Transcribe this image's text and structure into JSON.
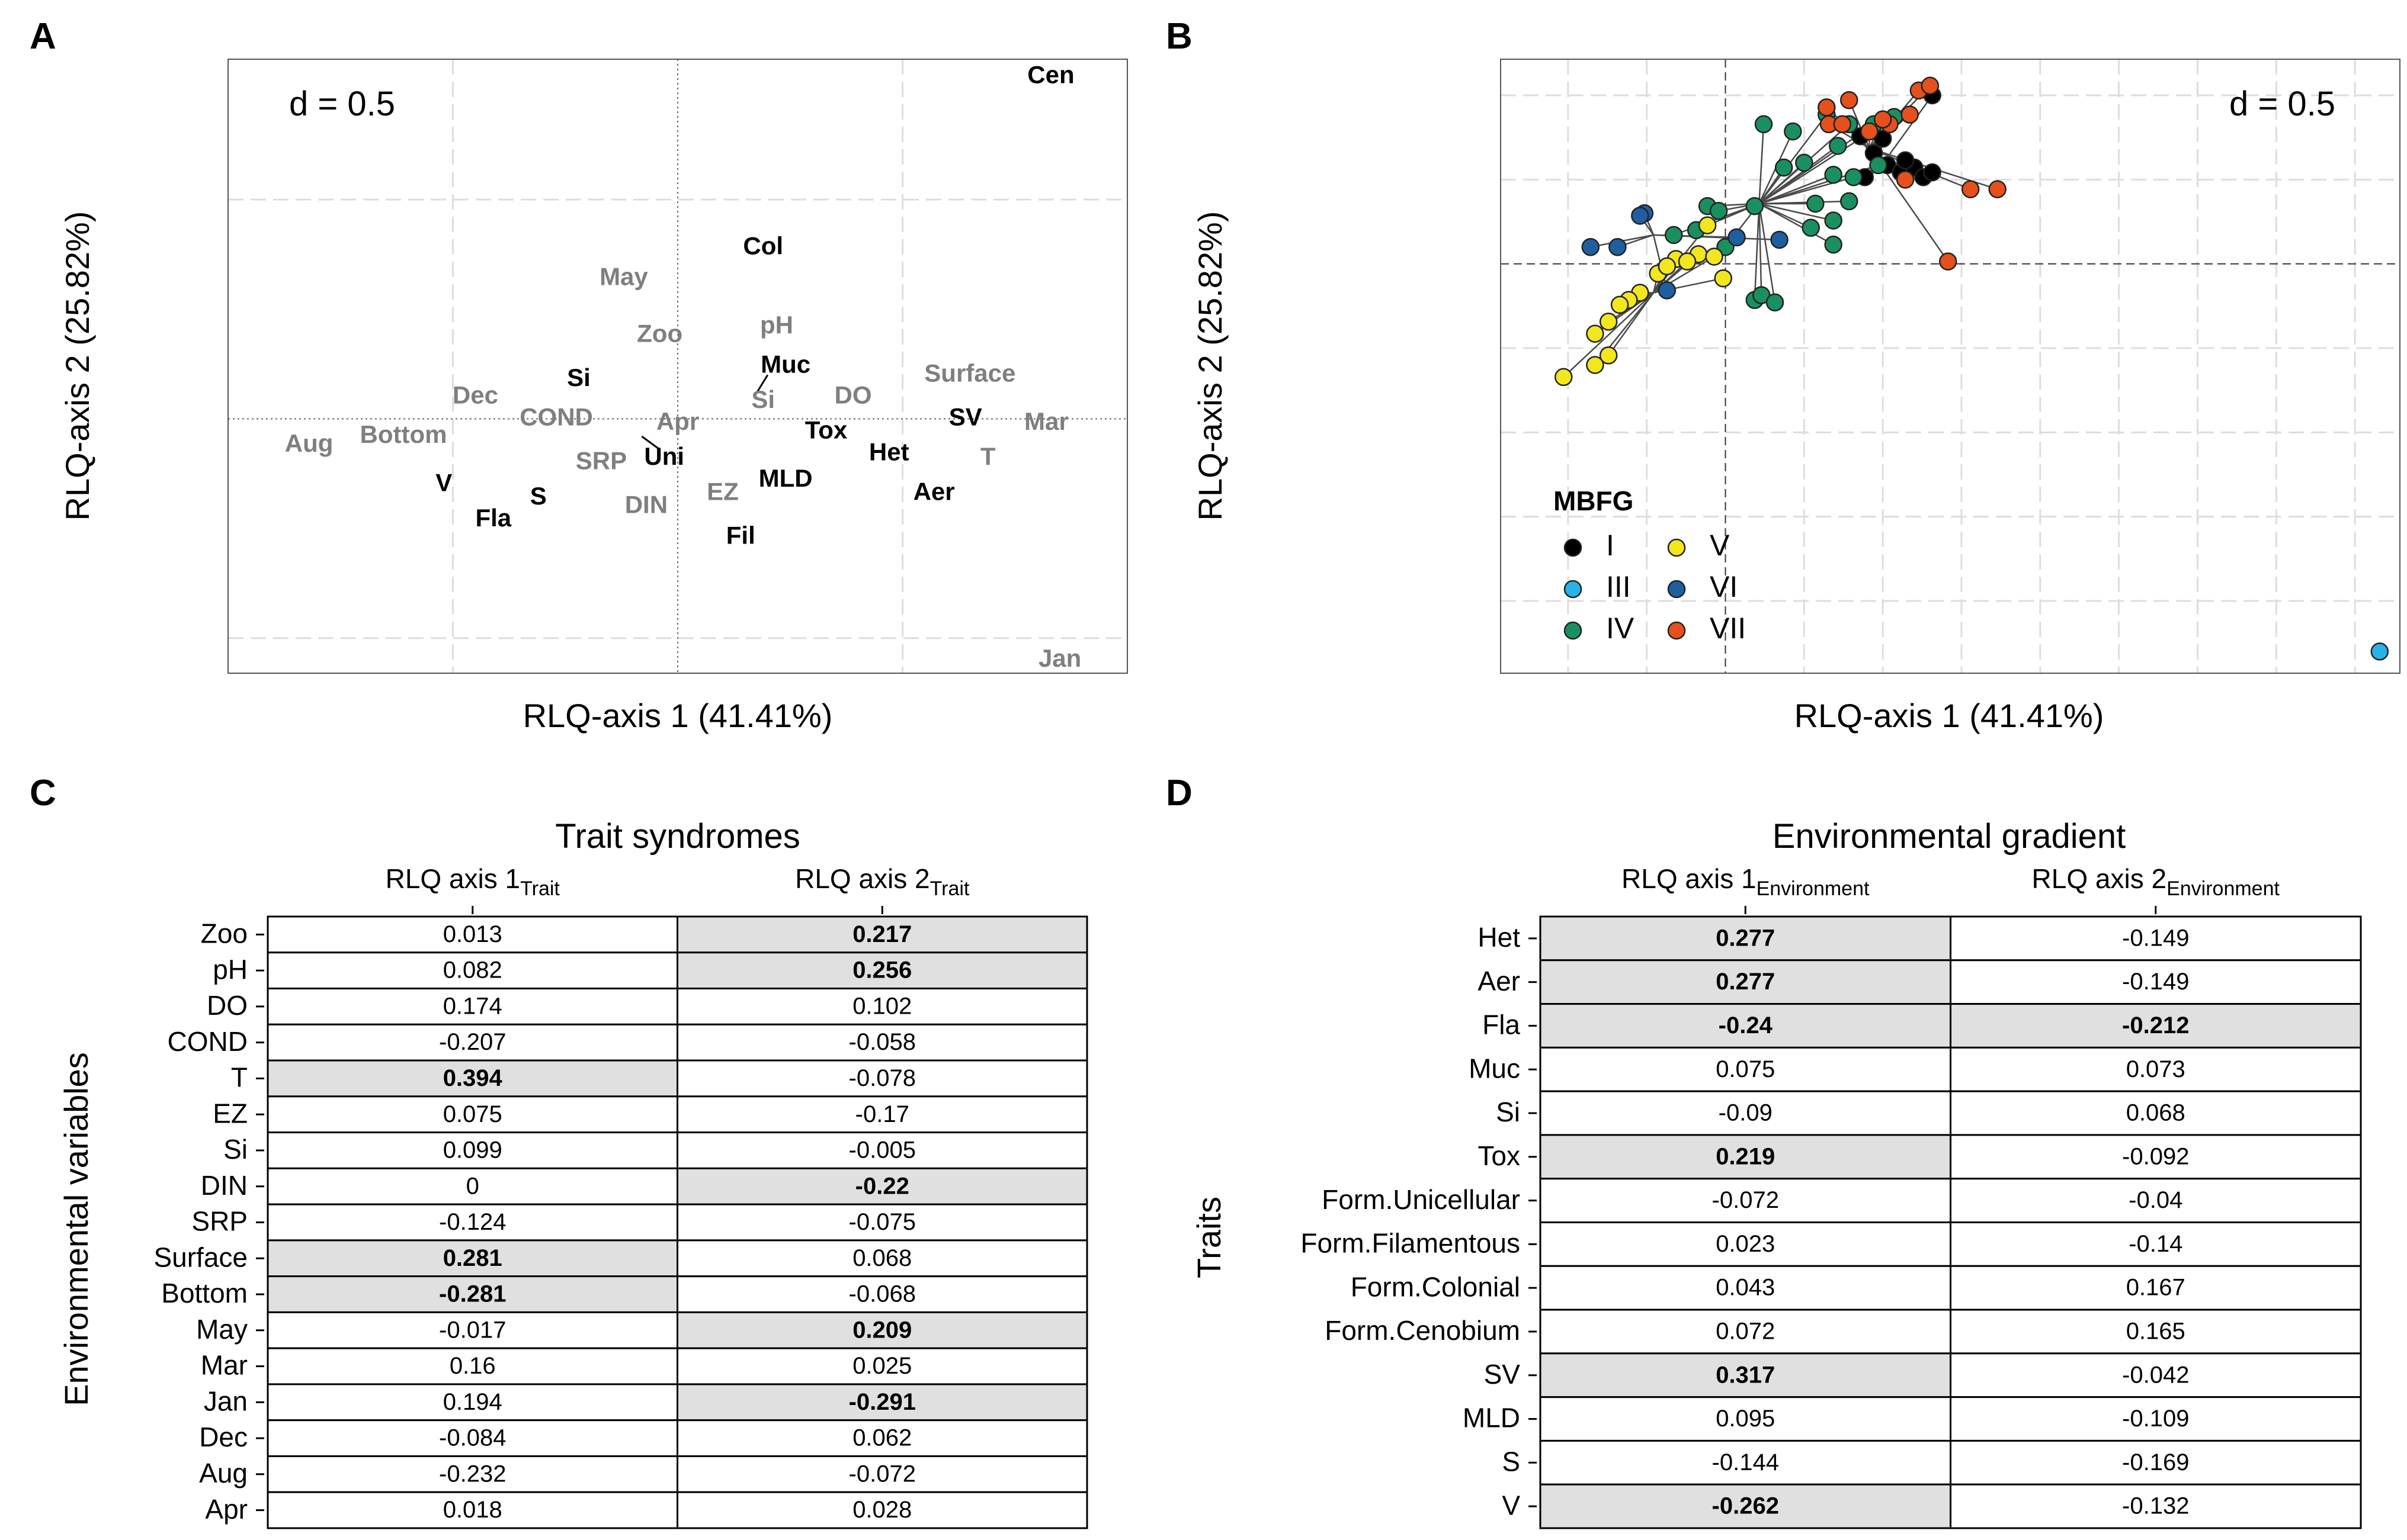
{
  "panels": {
    "A": "A",
    "B": "B",
    "C": "C",
    "D": "D"
  },
  "colors": {
    "grid": "#dddddd",
    "grey_label": "#7f7f7f",
    "highlight": "#e0e0e0",
    "mbfg": {
      "I": "#000000",
      "III": "#29b2e8",
      "IV": "#1a9060",
      "V": "#f2e61e",
      "VI": "#1f5fa0",
      "VII": "#e5501c"
    }
  },
  "chart_data": [
    {
      "id": "A",
      "type": "scatter",
      "title": "",
      "annotation": "d = 0.5",
      "xlabel": "RLQ-axis 1 (41.41%)",
      "ylabel": "RLQ-axis 2 (25.82%)",
      "xlim": [
        -1.0,
        1.0
      ],
      "ylim": [
        -0.58,
        0.82
      ],
      "grid_step": 0.5,
      "grid": true,
      "environment_labels": [
        {
          "label": "May",
          "x": -0.12,
          "y": 0.32
        },
        {
          "label": "Zoo",
          "x": -0.04,
          "y": 0.19
        },
        {
          "label": "pH",
          "x": 0.22,
          "y": 0.21
        },
        {
          "label": "Si",
          "x": 0.19,
          "y": 0.04
        },
        {
          "label": "Dec",
          "x": -0.45,
          "y": 0.05
        },
        {
          "label": "COND",
          "x": -0.27,
          "y": 0.0
        },
        {
          "label": "Apr",
          "x": 0.0,
          "y": -0.01
        },
        {
          "label": "DO",
          "x": 0.39,
          "y": 0.05
        },
        {
          "label": "Surface",
          "x": 0.65,
          "y": 0.1
        },
        {
          "label": "Mar",
          "x": 0.82,
          "y": -0.01
        },
        {
          "label": "Aug",
          "x": -0.82,
          "y": -0.06
        },
        {
          "label": "Bottom",
          "x": -0.61,
          "y": -0.04
        },
        {
          "label": "SRP",
          "x": -0.17,
          "y": -0.1
        },
        {
          "label": "DIN",
          "x": -0.07,
          "y": -0.2
        },
        {
          "label": "EZ",
          "x": 0.1,
          "y": -0.17
        },
        {
          "label": "T",
          "x": 0.69,
          "y": -0.09
        },
        {
          "label": "Jan",
          "x": 0.85,
          "y": -0.55
        }
      ],
      "trait_labels": [
        {
          "label": "Cen",
          "x": 0.83,
          "y": 0.78
        },
        {
          "label": "Col",
          "x": 0.19,
          "y": 0.39
        },
        {
          "label": "Muc",
          "x": 0.24,
          "y": 0.12
        },
        {
          "label": "Si",
          "x": -0.22,
          "y": 0.09
        },
        {
          "label": "Uni",
          "x": -0.03,
          "y": -0.09
        },
        {
          "label": "Tox",
          "x": 0.33,
          "y": -0.03
        },
        {
          "label": "SV",
          "x": 0.64,
          "y": 0.0
        },
        {
          "label": "Het",
          "x": 0.47,
          "y": -0.08
        },
        {
          "label": "MLD",
          "x": 0.24,
          "y": -0.14
        },
        {
          "label": "Aer",
          "x": 0.57,
          "y": -0.17
        },
        {
          "label": "V",
          "x": -0.52,
          "y": -0.15
        },
        {
          "label": "S",
          "x": -0.31,
          "y": -0.18
        },
        {
          "label": "Fla",
          "x": -0.41,
          "y": -0.23
        },
        {
          "label": "Fil",
          "x": 0.14,
          "y": -0.27
        }
      ]
    },
    {
      "id": "B",
      "type": "scatter",
      "annotation": "d = 0.5",
      "xlabel": "RLQ-axis 1 (41.41%)",
      "ylabel": "RLQ-axis 2 (25.82%)",
      "xlim": [
        -1.0,
        3.0
      ],
      "ylim": [
        -1.7,
        0.85
      ],
      "grid_step": 0.35,
      "grid": true,
      "legend_title": "MBFG",
      "legend_position": "bottom-left",
      "centroids": {
        "I": [
          0.68,
          0.39
        ],
        "IV": [
          0.15,
          0.25
        ],
        "V": [
          -0.32,
          -0.12
        ],
        "VI": [
          -0.32,
          0.12
        ],
        "VII": [
          0.64,
          0.48
        ]
      },
      "series": [
        {
          "name": "I",
          "points": [
            [
              0.72,
              0.41
            ],
            [
              0.78,
              0.38
            ],
            [
              0.62,
              0.36
            ],
            [
              0.84,
              0.4
            ],
            [
              0.88,
              0.36
            ],
            [
              0.7,
              0.52
            ],
            [
              0.66,
              0.46
            ],
            [
              0.8,
              0.43
            ],
            [
              0.92,
              0.38
            ],
            [
              0.6,
              0.53
            ],
            [
              0.92,
              0.7
            ]
          ]
        },
        {
          "name": "III",
          "points": [
            [
              2.91,
              -1.61
            ]
          ]
        },
        {
          "name": "IV",
          "points": [
            [
              0.17,
              0.58
            ],
            [
              0.13,
              0.24
            ],
            [
              -0.08,
              0.24
            ],
            [
              -0.03,
              0.22
            ],
            [
              0.4,
              0.25
            ],
            [
              0.38,
              0.15
            ],
            [
              0.35,
              0.42
            ],
            [
              0.45,
              0.62
            ],
            [
              0.55,
              0.58
            ],
            [
              0.5,
              0.49
            ],
            [
              0.66,
              0.58
            ],
            [
              0.75,
              0.61
            ],
            [
              0.68,
              0.41
            ],
            [
              0.48,
              0.18
            ],
            [
              0.55,
              0.26
            ],
            [
              0.3,
              0.55
            ],
            [
              0.26,
              0.4
            ],
            [
              -0.23,
              0.12
            ],
            [
              0.13,
              -0.15
            ],
            [
              0.16,
              -0.13
            ],
            [
              0.22,
              -0.16
            ],
            [
              0.0,
              0.07
            ],
            [
              -0.13,
              0.14
            ],
            [
              0.48,
              0.37
            ],
            [
              0.57,
              0.36
            ],
            [
              0.48,
              0.08
            ]
          ]
        },
        {
          "name": "V",
          "points": [
            [
              -0.08,
              0.16
            ],
            [
              -0.22,
              0.02
            ],
            [
              -0.3,
              -0.04
            ],
            [
              -0.38,
              -0.12
            ],
            [
              -0.43,
              -0.15
            ],
            [
              -0.47,
              -0.17
            ],
            [
              -0.52,
              -0.24
            ],
            [
              -0.72,
              -0.47
            ],
            [
              -0.58,
              -0.29
            ],
            [
              -0.52,
              -0.38
            ],
            [
              -0.58,
              -0.42
            ],
            [
              -0.12,
              0.04
            ],
            [
              -0.05,
              0.03
            ],
            [
              -0.17,
              0.01
            ],
            [
              -0.01,
              -0.06
            ],
            [
              -0.26,
              -0.01
            ]
          ]
        },
        {
          "name": "VI",
          "points": [
            [
              -0.36,
              0.21
            ],
            [
              -0.48,
              0.07
            ],
            [
              -0.6,
              0.07
            ],
            [
              -0.26,
              -0.11
            ],
            [
              0.05,
              0.11
            ],
            [
              0.24,
              0.1
            ],
            [
              -0.38,
              0.2
            ]
          ]
        },
        {
          "name": "VII",
          "points": [
            [
              0.73,
              0.58
            ],
            [
              0.82,
              0.62
            ],
            [
              0.86,
              0.72
            ],
            [
              0.91,
              0.74
            ],
            [
              0.55,
              0.68
            ],
            [
              0.46,
              0.58
            ],
            [
              0.45,
              0.65
            ],
            [
              0.7,
              0.6
            ],
            [
              0.64,
              0.55
            ],
            [
              0.8,
              0.35
            ],
            [
              1.09,
              0.31
            ],
            [
              1.21,
              0.31
            ],
            [
              0.99,
              0.01
            ],
            [
              0.52,
              0.58
            ]
          ]
        }
      ]
    },
    {
      "id": "C",
      "type": "table",
      "title": "Trait syndromes",
      "col_labels": [
        {
          "base": "RLQ axis 1",
          "sub": "Trait"
        },
        {
          "base": "RLQ axis 2",
          "sub": "Trait"
        }
      ],
      "ylabel": "Environmental variables",
      "rows": [
        {
          "label": "Zoo",
          "values": [
            "0.013",
            "0.217"
          ],
          "hl": [
            false,
            true
          ]
        },
        {
          "label": "pH",
          "values": [
            "0.082",
            "0.256"
          ],
          "hl": [
            false,
            true
          ]
        },
        {
          "label": "DO",
          "values": [
            "0.174",
            "0.102"
          ],
          "hl": [
            false,
            false
          ]
        },
        {
          "label": "COND",
          "values": [
            "-0.207",
            "-0.058"
          ],
          "hl": [
            false,
            false
          ]
        },
        {
          "label": "T",
          "values": [
            "0.394",
            "-0.078"
          ],
          "hl": [
            true,
            false
          ]
        },
        {
          "label": "EZ",
          "values": [
            "0.075",
            "-0.17"
          ],
          "hl": [
            false,
            false
          ]
        },
        {
          "label": "Si",
          "values": [
            "0.099",
            "-0.005"
          ],
          "hl": [
            false,
            false
          ]
        },
        {
          "label": "DIN",
          "values": [
            "0",
            "-0.22"
          ],
          "hl": [
            false,
            true
          ]
        },
        {
          "label": "SRP",
          "values": [
            "-0.124",
            "-0.075"
          ],
          "hl": [
            false,
            false
          ]
        },
        {
          "label": "Surface",
          "values": [
            "0.281",
            "0.068"
          ],
          "hl": [
            true,
            false
          ]
        },
        {
          "label": "Bottom",
          "values": [
            "-0.281",
            "-0.068"
          ],
          "hl": [
            true,
            false
          ]
        },
        {
          "label": "May",
          "values": [
            "-0.017",
            "0.209"
          ],
          "hl": [
            false,
            true
          ]
        },
        {
          "label": "Mar",
          "values": [
            "0.16",
            "0.025"
          ],
          "hl": [
            false,
            false
          ]
        },
        {
          "label": "Jan",
          "values": [
            "0.194",
            "-0.291"
          ],
          "hl": [
            false,
            true
          ]
        },
        {
          "label": "Dec",
          "values": [
            "-0.084",
            "0.062"
          ],
          "hl": [
            false,
            false
          ]
        },
        {
          "label": "Aug",
          "values": [
            "-0.232",
            "-0.072"
          ],
          "hl": [
            false,
            false
          ]
        },
        {
          "label": "Apr",
          "values": [
            "0.018",
            "0.028"
          ],
          "hl": [
            false,
            false
          ]
        }
      ]
    },
    {
      "id": "D",
      "type": "table",
      "title": "Environmental gradient",
      "col_labels": [
        {
          "base": "RLQ axis 1",
          "sub": "Environment"
        },
        {
          "base": "RLQ axis 2",
          "sub": "Environment"
        }
      ],
      "ylabel": "Traits",
      "rows": [
        {
          "label": "Het",
          "values": [
            "0.277",
            "-0.149"
          ],
          "hl": [
            true,
            false
          ]
        },
        {
          "label": "Aer",
          "values": [
            "0.277",
            "-0.149"
          ],
          "hl": [
            true,
            false
          ]
        },
        {
          "label": "Fla",
          "values": [
            "-0.24",
            "-0.212"
          ],
          "hl": [
            true,
            true
          ]
        },
        {
          "label": "Muc",
          "values": [
            "0.075",
            "0.073"
          ],
          "hl": [
            false,
            false
          ]
        },
        {
          "label": "Si",
          "values": [
            "-0.09",
            "0.068"
          ],
          "hl": [
            false,
            false
          ]
        },
        {
          "label": "Tox",
          "values": [
            "0.219",
            "-0.092"
          ],
          "hl": [
            true,
            false
          ]
        },
        {
          "label": "Form.Unicellular",
          "values": [
            "-0.072",
            "-0.04"
          ],
          "hl": [
            false,
            false
          ]
        },
        {
          "label": "Form.Filamentous",
          "values": [
            "0.023",
            "-0.14"
          ],
          "hl": [
            false,
            false
          ]
        },
        {
          "label": "Form.Colonial",
          "values": [
            "0.043",
            "0.167"
          ],
          "hl": [
            false,
            false
          ]
        },
        {
          "label": "Form.Cenobium",
          "values": [
            "0.072",
            "0.165"
          ],
          "hl": [
            false,
            false
          ]
        },
        {
          "label": "SV",
          "values": [
            "0.317",
            "-0.042"
          ],
          "hl": [
            true,
            false
          ]
        },
        {
          "label": "MLD",
          "values": [
            "0.095",
            "-0.109"
          ],
          "hl": [
            false,
            false
          ]
        },
        {
          "label": "S",
          "values": [
            "-0.144",
            "-0.169"
          ],
          "hl": [
            false,
            false
          ]
        },
        {
          "label": "V",
          "values": [
            "-0.262",
            "-0.132"
          ],
          "hl": [
            true,
            false
          ]
        }
      ]
    }
  ]
}
